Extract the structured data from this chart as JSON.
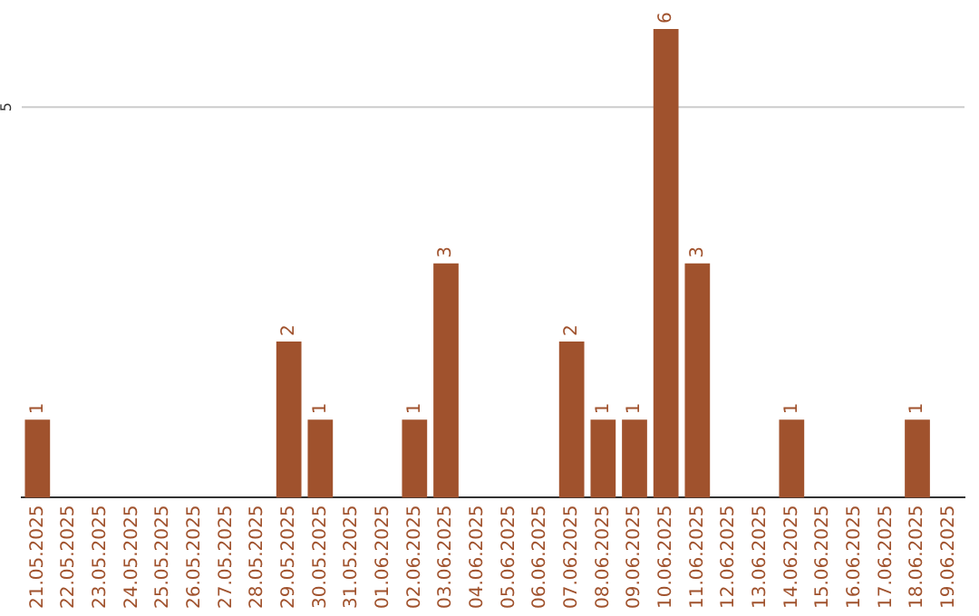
{
  "chart_data": {
    "type": "bar",
    "categories": [
      "21.05.2025",
      "22.05.2025",
      "23.05.2025",
      "24.05.2025",
      "25.05.2025",
      "26.05.2025",
      "27.05.2025",
      "28.05.2025",
      "29.05.2025",
      "30.05.2025",
      "31.05.2025",
      "01.06.2025",
      "02.06.2025",
      "03.06.2025",
      "04.06.2025",
      "05.06.2025",
      "06.06.2025",
      "07.06.2025",
      "08.06.2025",
      "09.06.2025",
      "10.06.2025",
      "11.06.2025",
      "12.06.2025",
      "13.06.2025",
      "14.06.2025",
      "15.06.2025",
      "16.06.2025",
      "17.06.2025",
      "18.06.2025",
      "19.06.2025"
    ],
    "values": [
      1,
      0,
      0,
      0,
      0,
      0,
      0,
      0,
      2,
      1,
      0,
      0,
      1,
      3,
      0,
      0,
      0,
      2,
      1,
      1,
      6,
      3,
      0,
      0,
      1,
      0,
      0,
      0,
      1,
      0
    ],
    "color": "#a0522d",
    "value_labels": [
      "1",
      null,
      null,
      null,
      null,
      null,
      null,
      null,
      "2",
      "1",
      null,
      null,
      "1",
      "3",
      null,
      null,
      null,
      "2",
      "1",
      "1",
      "6",
      "3",
      null,
      null,
      "1",
      null,
      null,
      null,
      "1",
      null
    ],
    "ref_lines": [
      {
        "axis": "y",
        "value": 5,
        "label": "5",
        "color": "#cccccc"
      }
    ]
  }
}
